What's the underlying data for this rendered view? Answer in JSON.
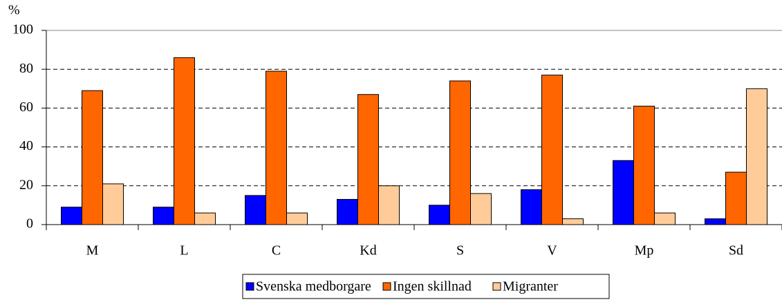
{
  "chart_data": {
    "type": "bar",
    "ylabel": "%",
    "categories": [
      "M",
      "L",
      "C",
      "Kd",
      "S",
      "V",
      "Mp",
      "Sd"
    ],
    "series": [
      {
        "name": "Svenska medborgare",
        "color": "#0000ff",
        "values": [
          9,
          9,
          15,
          13,
          10,
          18,
          33,
          3
        ]
      },
      {
        "name": "Ingen skillnad",
        "color": "#ff6600",
        "values": [
          69,
          86,
          79,
          67,
          74,
          77,
          61,
          27
        ]
      },
      {
        "name": "Migranter",
        "color": "#ffcc99",
        "values": [
          21,
          6,
          6,
          20,
          16,
          3,
          6,
          70
        ]
      }
    ],
    "ylim": [
      0,
      100
    ],
    "yticks": [
      0,
      20,
      40,
      60,
      80,
      100
    ],
    "grid": true,
    "legend": "bottom"
  }
}
